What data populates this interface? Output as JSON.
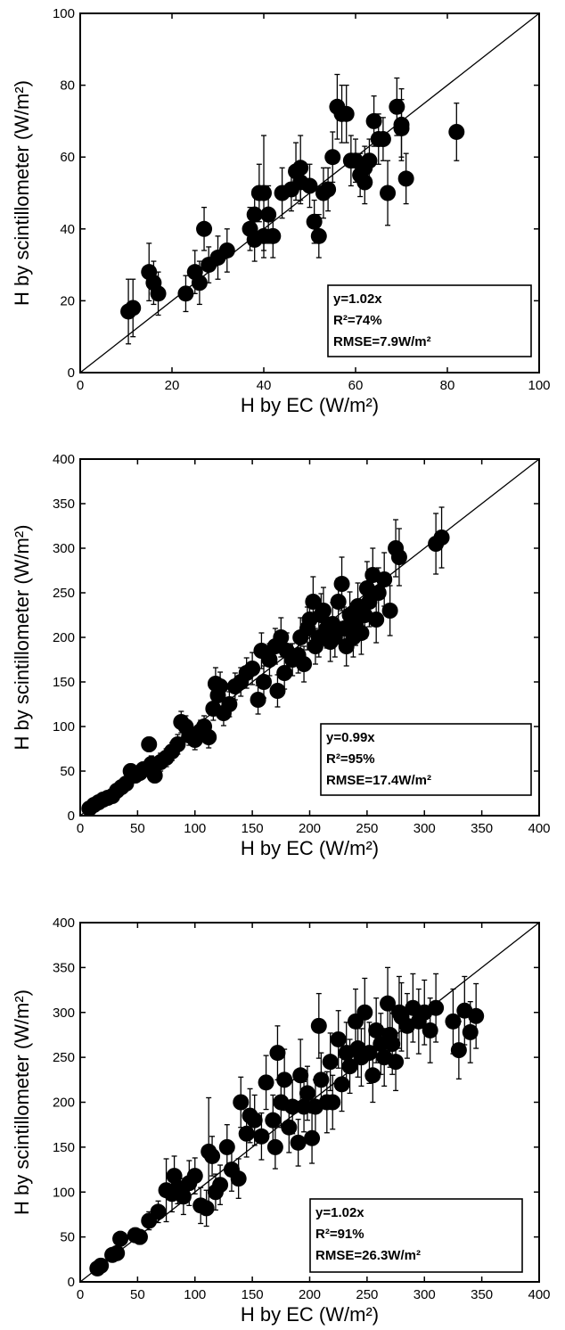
{
  "chart_data": [
    {
      "type": "scatter",
      "xlabel": "H by EC (W/m²)",
      "ylabel": "H by scintillometer (W/m²)",
      "xlim": [
        0,
        100
      ],
      "ylim": [
        0,
        100
      ],
      "xticks": [
        "0",
        "20",
        "40",
        "60",
        "80",
        "100"
      ],
      "yticks": [
        "0",
        "20",
        "40",
        "60",
        "80",
        "100"
      ],
      "reference_line": "1:1",
      "error_bars": true,
      "stats": [
        "y=1.02x",
        "R²=74%",
        "RMSE=7.9W/m²"
      ],
      "stats_position": "bottom-right",
      "points": [
        [
          10.5,
          17,
          9
        ],
        [
          11.5,
          18,
          8
        ],
        [
          15,
          28,
          8
        ],
        [
          16,
          25,
          6
        ],
        [
          17,
          22,
          6
        ],
        [
          23,
          22,
          5
        ],
        [
          25,
          28,
          6
        ],
        [
          26,
          25,
          6
        ],
        [
          27,
          40,
          6
        ],
        [
          28,
          30,
          5
        ],
        [
          30,
          32,
          6
        ],
        [
          32,
          34,
          6
        ],
        [
          37,
          40,
          6
        ],
        [
          38,
          37,
          6
        ],
        [
          38,
          44,
          7
        ],
        [
          39,
          50,
          8
        ],
        [
          40,
          38,
          6
        ],
        [
          40,
          50,
          16
        ],
        [
          41,
          44,
          8
        ],
        [
          42,
          38,
          6
        ],
        [
          44,
          50,
          7
        ],
        [
          46,
          51,
          6
        ],
        [
          47,
          56,
          8
        ],
        [
          48,
          53,
          6
        ],
        [
          48,
          57,
          9
        ],
        [
          50,
          52,
          6
        ],
        [
          51,
          42,
          6
        ],
        [
          52,
          38,
          6
        ],
        [
          53,
          50,
          7
        ],
        [
          54,
          51,
          6
        ],
        [
          55,
          60,
          7
        ],
        [
          56,
          74,
          9
        ],
        [
          57,
          72,
          8
        ],
        [
          58,
          72,
          8
        ],
        [
          59,
          59,
          7
        ],
        [
          60,
          59,
          6
        ],
        [
          61,
          55,
          6
        ],
        [
          62,
          53,
          6
        ],
        [
          62,
          57,
          6
        ],
        [
          63,
          59,
          6
        ],
        [
          64,
          70,
          7
        ],
        [
          65,
          65,
          7
        ],
        [
          66,
          65,
          6
        ],
        [
          67,
          50,
          9
        ],
        [
          69,
          74,
          8
        ],
        [
          70,
          68,
          8
        ],
        [
          70,
          69,
          10
        ],
        [
          71,
          54,
          7
        ],
        [
          82,
          67,
          8
        ]
      ]
    },
    {
      "type": "scatter",
      "xlabel": "H by EC (W/m²)",
      "ylabel": "H by scintillometer (W/m²)",
      "xlim": [
        0,
        400
      ],
      "ylim": [
        0,
        400
      ],
      "xticks": [
        "0",
        "50",
        "100",
        "150",
        "200",
        "250",
        "300",
        "350",
        "400"
      ],
      "yticks": [
        "0",
        "50",
        "100",
        "150",
        "200",
        "250",
        "300",
        "350",
        "400"
      ],
      "reference_line": "1:1",
      "error_bars": true,
      "stats": [
        "y=0.99x",
        "R²=95%",
        "RMSE=17.4W/m²"
      ],
      "stats_position": "bottom-right",
      "points": [
        [
          8,
          8,
          3
        ],
        [
          12,
          12,
          3
        ],
        [
          16,
          15,
          4
        ],
        [
          20,
          18,
          4
        ],
        [
          24,
          20,
          4
        ],
        [
          28,
          22,
          5
        ],
        [
          32,
          28,
          5
        ],
        [
          36,
          32,
          6
        ],
        [
          40,
          36,
          6
        ],
        [
          44,
          50,
          8
        ],
        [
          48,
          45,
          8
        ],
        [
          52,
          48,
          8
        ],
        [
          55,
          52,
          8
        ],
        [
          60,
          80,
          8
        ],
        [
          62,
          58,
          9
        ],
        [
          65,
          45,
          8
        ],
        [
          70,
          60,
          10
        ],
        [
          75,
          65,
          10
        ],
        [
          80,
          72,
          10
        ],
        [
          85,
          80,
          11
        ],
        [
          88,
          105,
          12
        ],
        [
          92,
          100,
          12
        ],
        [
          95,
          90,
          11
        ],
        [
          100,
          85,
          11
        ],
        [
          105,
          95,
          12
        ],
        [
          108,
          100,
          12
        ],
        [
          112,
          88,
          12
        ],
        [
          116,
          120,
          13
        ],
        [
          118,
          148,
          18
        ],
        [
          120,
          135,
          14
        ],
        [
          122,
          145,
          16
        ],
        [
          125,
          115,
          14
        ],
        [
          130,
          125,
          14
        ],
        [
          135,
          145,
          15
        ],
        [
          140,
          150,
          16
        ],
        [
          145,
          160,
          17
        ],
        [
          150,
          165,
          18
        ],
        [
          155,
          130,
          16
        ],
        [
          158,
          185,
          20
        ],
        [
          160,
          150,
          18
        ],
        [
          165,
          175,
          18
        ],
        [
          170,
          190,
          20
        ],
        [
          172,
          140,
          18
        ],
        [
          175,
          200,
          22
        ],
        [
          178,
          160,
          18
        ],
        [
          180,
          185,
          20
        ],
        [
          185,
          175,
          18
        ],
        [
          190,
          180,
          20
        ],
        [
          192,
          200,
          22
        ],
        [
          195,
          170,
          20
        ],
        [
          198,
          210,
          24
        ],
        [
          200,
          220,
          26
        ],
        [
          203,
          240,
          28
        ],
        [
          205,
          190,
          20
        ],
        [
          208,
          200,
          22
        ],
        [
          210,
          225,
          24
        ],
        [
          212,
          230,
          26
        ],
        [
          215,
          210,
          22
        ],
        [
          218,
          195,
          22
        ],
        [
          220,
          215,
          24
        ],
        [
          222,
          200,
          22
        ],
        [
          225,
          240,
          26
        ],
        [
          228,
          260,
          30
        ],
        [
          230,
          210,
          24
        ],
        [
          232,
          190,
          22
        ],
        [
          235,
          225,
          26
        ],
        [
          238,
          200,
          22
        ],
        [
          240,
          215,
          24
        ],
        [
          242,
          235,
          26
        ],
        [
          245,
          205,
          24
        ],
        [
          248,
          225,
          26
        ],
        [
          250,
          255,
          30
        ],
        [
          252,
          240,
          28
        ],
        [
          255,
          270,
          30
        ],
        [
          258,
          220,
          26
        ],
        [
          260,
          250,
          28
        ],
        [
          265,
          265,
          30
        ],
        [
          270,
          230,
          28
        ],
        [
          275,
          300,
          32
        ],
        [
          278,
          290,
          32
        ],
        [
          310,
          305,
          34
        ],
        [
          315,
          312,
          34
        ]
      ]
    },
    {
      "type": "scatter",
      "xlabel": "H by EC (W/m²)",
      "ylabel": "H by scintillometer (W/m²)",
      "xlim": [
        0,
        400
      ],
      "ylim": [
        0,
        400
      ],
      "xticks": [
        "0",
        "50",
        "100",
        "150",
        "200",
        "250",
        "300",
        "350",
        "400"
      ],
      "yticks": [
        "0",
        "50",
        "100",
        "150",
        "200",
        "250",
        "300",
        "350",
        "400"
      ],
      "reference_line": "1:1",
      "error_bars": true,
      "stats": [
        "y=1.02x",
        "R²=91%",
        "RMSE=26.3W/m²"
      ],
      "stats_position": "bottom-right",
      "points": [
        [
          15,
          15,
          5
        ],
        [
          18,
          18,
          5
        ],
        [
          28,
          30,
          6
        ],
        [
          32,
          32,
          6
        ],
        [
          35,
          48,
          8
        ],
        [
          48,
          52,
          8
        ],
        [
          52,
          50,
          8
        ],
        [
          60,
          68,
          10
        ],
        [
          68,
          78,
          12
        ],
        [
          75,
          102,
          35
        ],
        [
          80,
          98,
          20
        ],
        [
          82,
          118,
          22
        ],
        [
          85,
          105,
          18
        ],
        [
          90,
          95,
          20
        ],
        [
          95,
          110,
          25
        ],
        [
          100,
          118,
          20
        ],
        [
          105,
          85,
          20
        ],
        [
          110,
          82,
          20
        ],
        [
          112,
          145,
          60
        ],
        [
          115,
          140,
          22
        ],
        [
          118,
          100,
          20
        ],
        [
          122,
          108,
          22
        ],
        [
          128,
          150,
          25
        ],
        [
          132,
          125,
          24
        ],
        [
          138,
          115,
          22
        ],
        [
          140,
          200,
          28
        ],
        [
          145,
          165,
          26
        ],
        [
          148,
          185,
          30
        ],
        [
          152,
          180,
          28
        ],
        [
          158,
          162,
          26
        ],
        [
          162,
          222,
          30
        ],
        [
          168,
          180,
          28
        ],
        [
          170,
          150,
          24
        ],
        [
          172,
          255,
          30
        ],
        [
          175,
          200,
          28
        ],
        [
          178,
          225,
          34
        ],
        [
          182,
          172,
          28
        ],
        [
          185,
          195,
          30
        ],
        [
          190,
          155,
          26
        ],
        [
          192,
          230,
          40
        ],
        [
          195,
          195,
          28
        ],
        [
          198,
          210,
          30
        ],
        [
          202,
          160,
          28
        ],
        [
          205,
          195,
          30
        ],
        [
          208,
          285,
          36
        ],
        [
          210,
          225,
          30
        ],
        [
          215,
          200,
          34
        ],
        [
          218,
          245,
          32
        ],
        [
          220,
          200,
          30
        ],
        [
          225,
          270,
          32
        ],
        [
          228,
          220,
          30
        ],
        [
          232,
          255,
          34
        ],
        [
          235,
          240,
          30
        ],
        [
          240,
          290,
          36
        ],
        [
          242,
          260,
          32
        ],
        [
          245,
          250,
          32
        ],
        [
          248,
          300,
          38
        ],
        [
          252,
          255,
          34
        ],
        [
          255,
          230,
          30
        ],
        [
          258,
          280,
          36
        ],
        [
          262,
          265,
          34
        ],
        [
          265,
          250,
          32
        ],
        [
          268,
          310,
          40
        ],
        [
          270,
          275,
          36
        ],
        [
          272,
          265,
          34
        ],
        [
          275,
          245,
          32
        ],
        [
          278,
          300,
          40
        ],
        [
          280,
          295,
          38
        ],
        [
          285,
          285,
          36
        ],
        [
          290,
          305,
          38
        ],
        [
          295,
          290,
          36
        ],
        [
          300,
          300,
          36
        ],
        [
          305,
          280,
          36
        ],
        [
          310,
          305,
          38
        ],
        [
          325,
          290,
          36
        ],
        [
          330,
          258,
          32
        ],
        [
          335,
          302,
          38
        ],
        [
          340,
          278,
          34
        ],
        [
          345,
          296,
          36
        ]
      ]
    }
  ]
}
